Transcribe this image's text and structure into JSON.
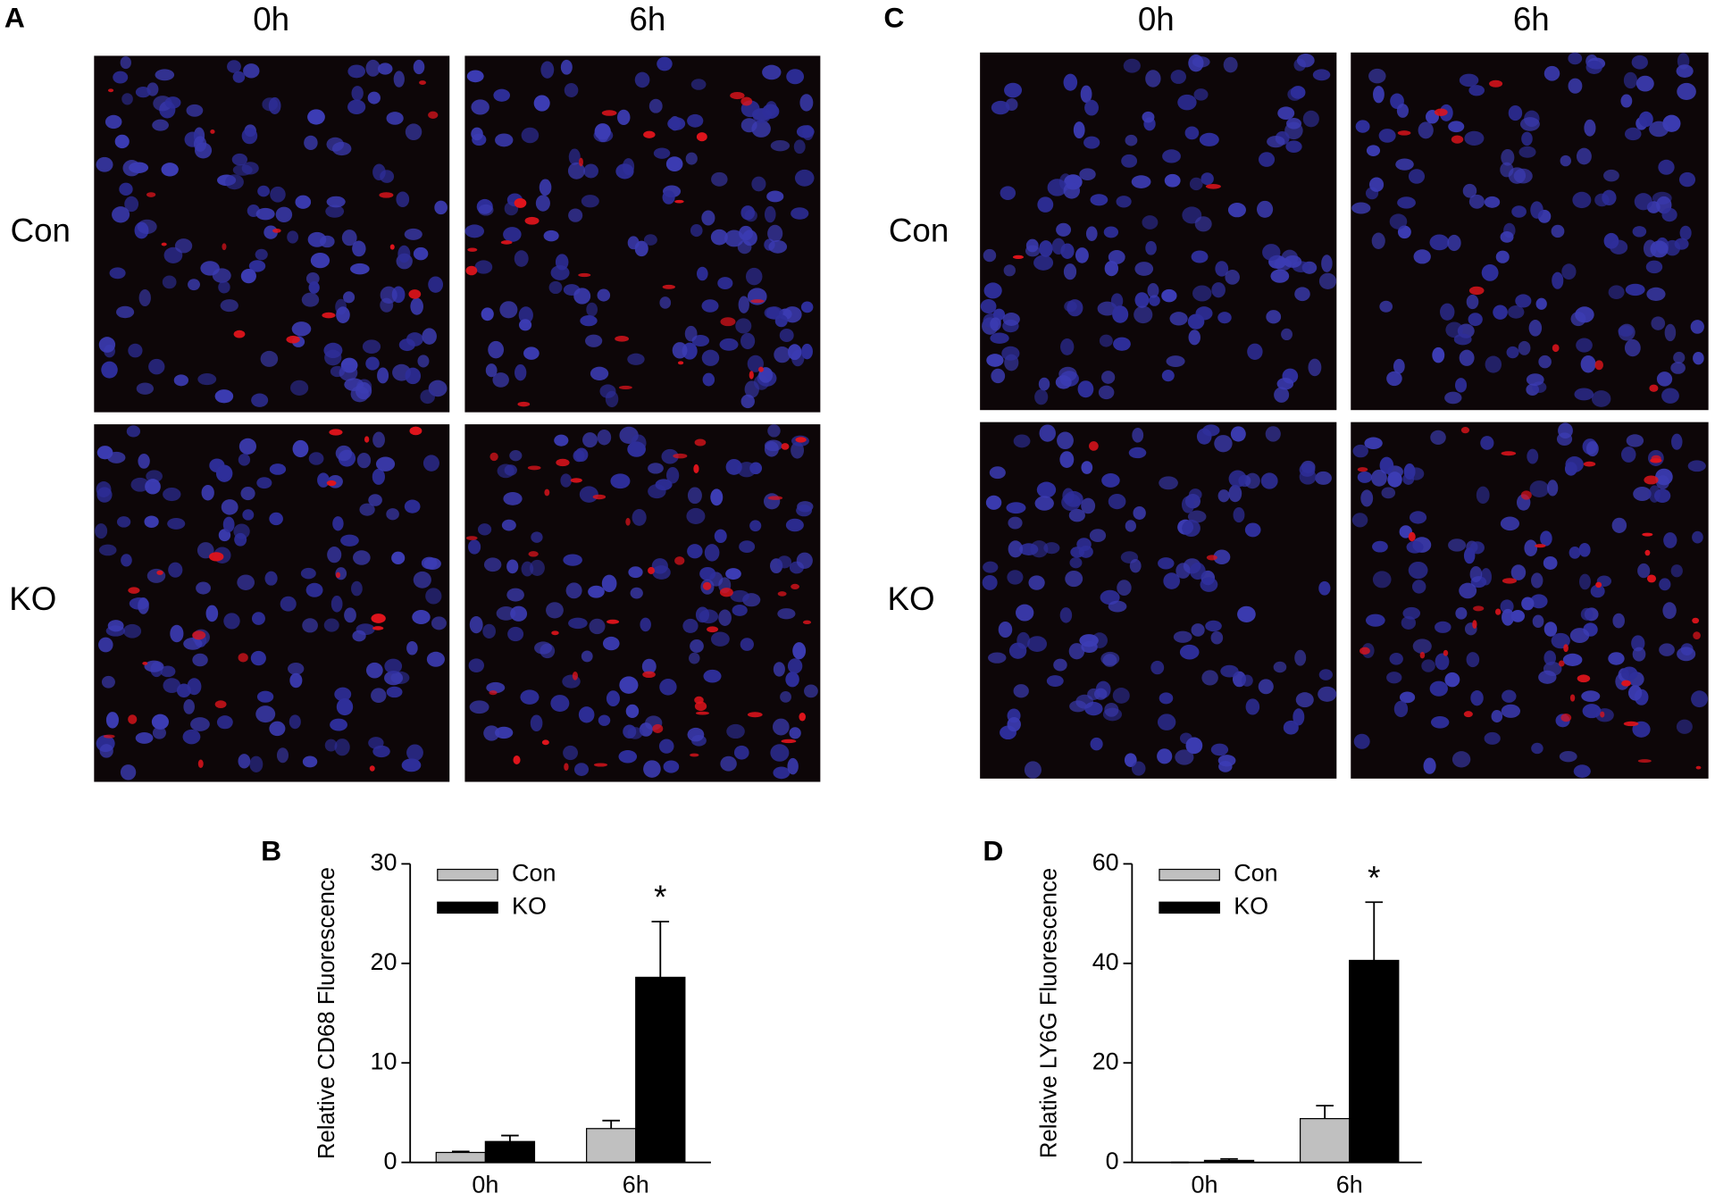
{
  "panels": [
    {
      "label": "A",
      "columns": [
        "0h",
        "6h"
      ],
      "rows": [
        "Con",
        "KO"
      ]
    },
    {
      "label": "C",
      "columns": [
        "0h",
        "6h"
      ],
      "rows": [
        "Con",
        "KO"
      ]
    }
  ],
  "chart_data": [
    {
      "type": "bar",
      "panel_label": "B",
      "y_label": "Relative CD68 Fluorescence",
      "categories": [
        "0h",
        "6h"
      ],
      "series": [
        {
          "name": "Con",
          "color": "#c0c0c0",
          "values": [
            1.0,
            3.4
          ],
          "errors": [
            0.1,
            0.8
          ]
        },
        {
          "name": "KO",
          "color": "#000000",
          "values": [
            2.1,
            18.6
          ],
          "errors": [
            0.6,
            5.6
          ]
        }
      ],
      "ylim": [
        0,
        30
      ],
      "yticks": [
        0,
        10,
        20,
        30
      ],
      "annotation": "*"
    },
    {
      "type": "bar",
      "panel_label": "D",
      "y_label": "Relative LY6G Fluorescence",
      "categories": [
        "0h",
        "6h"
      ],
      "series": [
        {
          "name": "Con",
          "color": "#c0c0c0",
          "values": [
            0,
            8.8
          ],
          "errors": [
            0,
            2.6
          ]
        },
        {
          "name": "KO",
          "color": "#000000",
          "values": [
            0.4,
            40.6
          ],
          "errors": [
            0.3,
            11.7
          ]
        }
      ],
      "ylim": [
        0,
        60
      ],
      "yticks": [
        0,
        20,
        40,
        60
      ],
      "annotation": "*"
    }
  ]
}
